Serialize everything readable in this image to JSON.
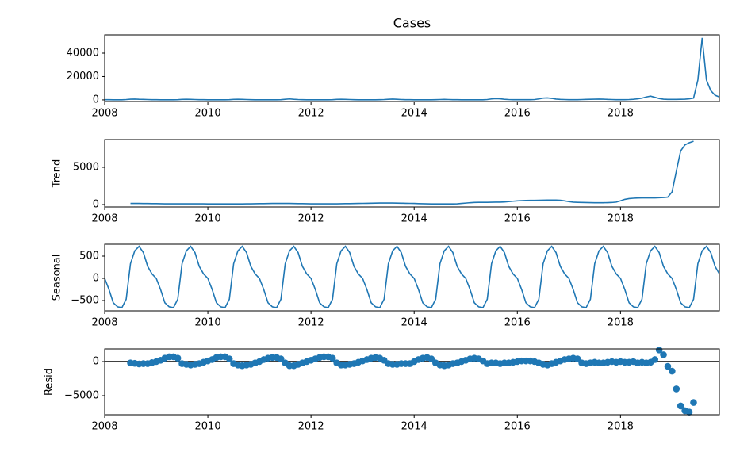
{
  "chart_data": [
    {
      "type": "line",
      "title": "Cases",
      "color": "#1f77b4",
      "xlim": [
        2008,
        2019.9167
      ],
      "xticks": [
        2008,
        2010,
        2012,
        2014,
        2016,
        2018
      ],
      "ylim": [
        -1400,
        55600
      ],
      "yticks": [
        0,
        20000,
        40000
      ],
      "x": [
        2008,
        2008.0833,
        2008.1667,
        2008.25,
        2008.3333,
        2008.4167,
        2008.5,
        2008.5833,
        2008.6667,
        2008.75,
        2008.8333,
        2008.9167,
        2009,
        2009.0833,
        2009.1667,
        2009.25,
        2009.3333,
        2009.4167,
        2009.5,
        2009.5833,
        2009.6667,
        2009.75,
        2009.8333,
        2009.9167,
        2010,
        2010.0833,
        2010.1667,
        2010.25,
        2010.3333,
        2010.4167,
        2010.5,
        2010.5833,
        2010.6667,
        2010.75,
        2010.8333,
        2010.9167,
        2011,
        2011.0833,
        2011.1667,
        2011.25,
        2011.3333,
        2011.4167,
        2011.5,
        2011.5833,
        2011.6667,
        2011.75,
        2011.8333,
        2011.9167,
        2012,
        2012.0833,
        2012.1667,
        2012.25,
        2012.3333,
        2012.4167,
        2012.5,
        2012.5833,
        2012.6667,
        2012.75,
        2012.8333,
        2012.9167,
        2013,
        2013.0833,
        2013.1667,
        2013.25,
        2013.3333,
        2013.4167,
        2013.5,
        2013.5833,
        2013.6667,
        2013.75,
        2013.8333,
        2013.9167,
        2014,
        2014.0833,
        2014.1667,
        2014.25,
        2014.3333,
        2014.4167,
        2014.5,
        2014.5833,
        2014.6667,
        2014.75,
        2014.8333,
        2014.9167,
        2015,
        2015.0833,
        2015.1667,
        2015.25,
        2015.3333,
        2015.4167,
        2015.5,
        2015.5833,
        2015.6667,
        2015.75,
        2015.8333,
        2015.9167,
        2016,
        2016.0833,
        2016.1667,
        2016.25,
        2016.3333,
        2016.4167,
        2016.5,
        2016.5833,
        2016.6667,
        2016.75,
        2016.8333,
        2016.9167,
        2017,
        2017.0833,
        2017.1667,
        2017.25,
        2017.3333,
        2017.4167,
        2017.5,
        2017.5833,
        2017.6667,
        2017.75,
        2017.8333,
        2017.9167,
        2018,
        2018.0833,
        2018.1667,
        2018.25,
        2018.3333,
        2018.4167,
        2018.5,
        2018.5833,
        2018.6667,
        2018.75,
        2018.8333,
        2018.9167,
        2019,
        2019.0833,
        2019.1667,
        2019.25,
        2019.3333,
        2019.4167,
        2019.5,
        2019.5833,
        2019.6667,
        2019.75,
        2019.8333,
        2019.9167
      ],
      "values": [
        200,
        150,
        100,
        100,
        100,
        300,
        600,
        700,
        500,
        400,
        300,
        200,
        150,
        100,
        100,
        100,
        100,
        200,
        400,
        500,
        400,
        300,
        200,
        150,
        100,
        100,
        100,
        100,
        100,
        200,
        400,
        500,
        400,
        300,
        200,
        100,
        100,
        100,
        100,
        100,
        100,
        200,
        500,
        800,
        500,
        300,
        200,
        100,
        100,
        100,
        100,
        100,
        100,
        200,
        400,
        500,
        400,
        300,
        200,
        100,
        100,
        100,
        100,
        100,
        200,
        300,
        500,
        700,
        500,
        300,
        200,
        150,
        100,
        100,
        100,
        100,
        100,
        200,
        300,
        400,
        300,
        200,
        150,
        100,
        100,
        100,
        100,
        100,
        100,
        300,
        800,
        1100,
        900,
        500,
        300,
        200,
        200,
        200,
        200,
        200,
        300,
        800,
        1500,
        1700,
        1300,
        700,
        400,
        300,
        200,
        200,
        200,
        300,
        400,
        500,
        600,
        700,
        600,
        400,
        300,
        200,
        200,
        200,
        300,
        500,
        900,
        1500,
        2500,
        3200,
        2200,
        1200,
        600,
        400,
        400,
        400,
        500,
        600,
        900,
        1500,
        17000,
        53000,
        17000,
        8000,
        4000,
        2500
      ]
    },
    {
      "type": "line",
      "ylabel": "Trend",
      "color": "#1f77b4",
      "xlim": [
        2008,
        2019.9167
      ],
      "xticks": [
        2008,
        2010,
        2012,
        2014,
        2016,
        2018
      ],
      "ylim": [
        -320,
        8720
      ],
      "yticks": [
        0,
        5000
      ],
      "x": [
        2008,
        2008.0833,
        2008.1667,
        2008.25,
        2008.3333,
        2008.4167,
        2008.5,
        2008.5833,
        2008.6667,
        2008.75,
        2008.8333,
        2008.9167,
        2009,
        2009.0833,
        2009.1667,
        2009.25,
        2009.3333,
        2009.4167,
        2009.5,
        2009.5833,
        2009.6667,
        2009.75,
        2009.8333,
        2009.9167,
        2010,
        2010.0833,
        2010.1667,
        2010.25,
        2010.3333,
        2010.4167,
        2010.5,
        2010.5833,
        2010.6667,
        2010.75,
        2010.8333,
        2010.9167,
        2011,
        2011.0833,
        2011.1667,
        2011.25,
        2011.3333,
        2011.4167,
        2011.5,
        2011.5833,
        2011.6667,
        2011.75,
        2011.8333,
        2011.9167,
        2012,
        2012.0833,
        2012.1667,
        2012.25,
        2012.3333,
        2012.4167,
        2012.5,
        2012.5833,
        2012.6667,
        2012.75,
        2012.8333,
        2012.9167,
        2013,
        2013.0833,
        2013.1667,
        2013.25,
        2013.3333,
        2013.4167,
        2013.5,
        2013.5833,
        2013.6667,
        2013.75,
        2013.8333,
        2013.9167,
        2014,
        2014.0833,
        2014.1667,
        2014.25,
        2014.3333,
        2014.4167,
        2014.5,
        2014.5833,
        2014.6667,
        2014.75,
        2014.8333,
        2014.9167,
        2015,
        2015.0833,
        2015.1667,
        2015.25,
        2015.3333,
        2015.4167,
        2015.5,
        2015.5833,
        2015.6667,
        2015.75,
        2015.8333,
        2015.9167,
        2016,
        2016.0833,
        2016.1667,
        2016.25,
        2016.3333,
        2016.4167,
        2016.5,
        2016.5833,
        2016.6667,
        2016.75,
        2016.8333,
        2016.9167,
        2017,
        2017.0833,
        2017.1667,
        2017.25,
        2017.3333,
        2017.4167,
        2017.5,
        2017.5833,
        2017.6667,
        2017.75,
        2017.8333,
        2017.9167,
        2018,
        2018.0833,
        2018.1667,
        2018.25,
        2018.3333,
        2018.4167,
        2018.5,
        2018.5833,
        2018.6667,
        2018.75,
        2018.8333,
        2018.9167,
        2019,
        2019.0833,
        2019.1667,
        2019.25,
        2019.3333,
        2019.4167,
        2019.5,
        2019.5833,
        2019.6667,
        2019.75,
        2019.8333,
        2019.9167
      ],
      "values": [
        null,
        null,
        null,
        null,
        null,
        null,
        150,
        150,
        150,
        140,
        140,
        130,
        120,
        110,
        100,
        100,
        100,
        100,
        100,
        100,
        100,
        100,
        100,
        100,
        90,
        90,
        90,
        90,
        90,
        90,
        90,
        90,
        90,
        100,
        100,
        110,
        120,
        130,
        140,
        150,
        150,
        150,
        150,
        150,
        140,
        130,
        120,
        110,
        100,
        100,
        100,
        100,
        100,
        100,
        100,
        110,
        120,
        130,
        140,
        150,
        160,
        170,
        180,
        190,
        200,
        210,
        210,
        200,
        190,
        180,
        170,
        160,
        150,
        130,
        110,
        100,
        90,
        90,
        90,
        90,
        90,
        90,
        100,
        150,
        200,
        250,
        280,
        300,
        300,
        300,
        310,
        320,
        330,
        350,
        400,
        450,
        500,
        530,
        550,
        560,
        570,
        580,
        590,
        600,
        600,
        600,
        580,
        500,
        400,
        330,
        300,
        280,
        270,
        260,
        250,
        250,
        250,
        260,
        280,
        330,
        500,
        700,
        800,
        850,
        880,
        900,
        900,
        900,
        900,
        920,
        950,
        1000,
        1700,
        4500,
        7200,
        8000,
        8300,
        8500,
        null,
        null,
        null,
        null,
        null,
        null
      ]
    },
    {
      "type": "line",
      "ylabel": "Seasonal",
      "color": "#1f77b4",
      "xlim": [
        2008,
        2019.9167
      ],
      "xticks": [
        2008,
        2010,
        2012,
        2014,
        2016,
        2018
      ],
      "ylim": [
        -732,
        768
      ],
      "yticks": [
        {
          "value": -500,
          "label": "−500"
        },
        0,
        500
      ],
      "x": [
        2008,
        2008.0833,
        2008.1667,
        2008.25,
        2008.3333,
        2008.4167,
        2008.5,
        2008.5833,
        2008.6667,
        2008.75,
        2008.8333,
        2008.9167,
        2009,
        2009.0833,
        2009.1667,
        2009.25,
        2009.3333,
        2009.4167,
        2009.5,
        2009.5833,
        2009.6667,
        2009.75,
        2009.8333,
        2009.9167,
        2010,
        2010.0833,
        2010.1667,
        2010.25,
        2010.3333,
        2010.4167,
        2010.5,
        2010.5833,
        2010.6667,
        2010.75,
        2010.8333,
        2010.9167,
        2011,
        2011.0833,
        2011.1667,
        2011.25,
        2011.3333,
        2011.4167,
        2011.5,
        2011.5833,
        2011.6667,
        2011.75,
        2011.8333,
        2011.9167,
        2012,
        2012.0833,
        2012.1667,
        2012.25,
        2012.3333,
        2012.4167,
        2012.5,
        2012.5833,
        2012.6667,
        2012.75,
        2012.8333,
        2012.9167,
        2013,
        2013.0833,
        2013.1667,
        2013.25,
        2013.3333,
        2013.4167,
        2013.5,
        2013.5833,
        2013.6667,
        2013.75,
        2013.8333,
        2013.9167,
        2014,
        2014.0833,
        2014.1667,
        2014.25,
        2014.3333,
        2014.4167,
        2014.5,
        2014.5833,
        2014.6667,
        2014.75,
        2014.8333,
        2014.9167,
        2015,
        2015.0833,
        2015.1667,
        2015.25,
        2015.3333,
        2015.4167,
        2015.5,
        2015.5833,
        2015.6667,
        2015.75,
        2015.8333,
        2015.9167,
        2016,
        2016.0833,
        2016.1667,
        2016.25,
        2016.3333,
        2016.4167,
        2016.5,
        2016.5833,
        2016.6667,
        2016.75,
        2016.8333,
        2016.9167,
        2017,
        2017.0833,
        2017.1667,
        2017.25,
        2017.3333,
        2017.4167,
        2017.5,
        2017.5833,
        2017.6667,
        2017.75,
        2017.8333,
        2017.9167,
        2018,
        2018.0833,
        2018.1667,
        2018.25,
        2018.3333,
        2018.4167,
        2018.5,
        2018.5833,
        2018.6667,
        2018.75,
        2018.8333,
        2018.9167,
        2019,
        2019.0833,
        2019.1667,
        2019.25,
        2019.3333,
        2019.4167,
        2019.5,
        2019.5833,
        2019.6667,
        2019.75,
        2019.8333,
        2019.9167
      ],
      "values": [
        0,
        -250,
        -550,
        -640,
        -660,
        -470,
        330,
        620,
        720,
        580,
        270,
        100,
        0,
        -250,
        -550,
        -640,
        -660,
        -470,
        330,
        620,
        720,
        580,
        270,
        100,
        0,
        -250,
        -550,
        -640,
        -660,
        -470,
        330,
        620,
        720,
        580,
        270,
        100,
        0,
        -250,
        -550,
        -640,
        -660,
        -470,
        330,
        620,
        720,
        580,
        270,
        100,
        0,
        -250,
        -550,
        -640,
        -660,
        -470,
        330,
        620,
        720,
        580,
        270,
        100,
        0,
        -250,
        -550,
        -640,
        -660,
        -470,
        330,
        620,
        720,
        580,
        270,
        100,
        0,
        -250,
        -550,
        -640,
        -660,
        -470,
        330,
        620,
        720,
        580,
        270,
        100,
        0,
        -250,
        -550,
        -640,
        -660,
        -470,
        330,
        620,
        720,
        580,
        270,
        100,
        0,
        -250,
        -550,
        -640,
        -660,
        -470,
        330,
        620,
        720,
        580,
        270,
        100,
        0,
        -250,
        -550,
        -640,
        -660,
        -470,
        330,
        620,
        720,
        580,
        270,
        100,
        0,
        -250,
        -550,
        -640,
        -660,
        -470,
        330,
        620,
        720,
        580,
        270,
        100,
        0,
        -250,
        -550,
        -640,
        -660,
        -470,
        330,
        620,
        720,
        580,
        270,
        100
      ]
    },
    {
      "type": "scatter",
      "ylabel": "Resid",
      "color": "#1f77b4",
      "hline": 0,
      "xlim": [
        2008,
        2019.9167
      ],
      "xticks": [
        2008,
        2010,
        2012,
        2014,
        2016,
        2018
      ],
      "ylim": [
        -7790,
        1860
      ],
      "yticks": [
        {
          "value": -5000,
          "label": "−5000"
        },
        0
      ],
      "x": [
        2008,
        2008.0833,
        2008.1667,
        2008.25,
        2008.3333,
        2008.4167,
        2008.5,
        2008.5833,
        2008.6667,
        2008.75,
        2008.8333,
        2008.9167,
        2009,
        2009.0833,
        2009.1667,
        2009.25,
        2009.3333,
        2009.4167,
        2009.5,
        2009.5833,
        2009.6667,
        2009.75,
        2009.8333,
        2009.9167,
        2010,
        2010.0833,
        2010.1667,
        2010.25,
        2010.3333,
        2010.4167,
        2010.5,
        2010.5833,
        2010.6667,
        2010.75,
        2010.8333,
        2010.9167,
        2011,
        2011.0833,
        2011.1667,
        2011.25,
        2011.3333,
        2011.4167,
        2011.5,
        2011.5833,
        2011.6667,
        2011.75,
        2011.8333,
        2011.9167,
        2012,
        2012.0833,
        2012.1667,
        2012.25,
        2012.3333,
        2012.4167,
        2012.5,
        2012.5833,
        2012.6667,
        2012.75,
        2012.8333,
        2012.9167,
        2013,
        2013.0833,
        2013.1667,
        2013.25,
        2013.3333,
        2013.4167,
        2013.5,
        2013.5833,
        2013.6667,
        2013.75,
        2013.8333,
        2013.9167,
        2014,
        2014.0833,
        2014.1667,
        2014.25,
        2014.3333,
        2014.4167,
        2014.5,
        2014.5833,
        2014.6667,
        2014.75,
        2014.8333,
        2014.9167,
        2015,
        2015.0833,
        2015.1667,
        2015.25,
        2015.3333,
        2015.4167,
        2015.5,
        2015.5833,
        2015.6667,
        2015.75,
        2015.8333,
        2015.9167,
        2016,
        2016.0833,
        2016.1667,
        2016.25,
        2016.3333,
        2016.4167,
        2016.5,
        2016.5833,
        2016.6667,
        2016.75,
        2016.8333,
        2016.9167,
        2017,
        2017.0833,
        2017.1667,
        2017.25,
        2017.3333,
        2017.4167,
        2017.5,
        2017.5833,
        2017.6667,
        2017.75,
        2017.8333,
        2017.9167,
        2018,
        2018.0833,
        2018.1667,
        2018.25,
        2018.3333,
        2018.4167,
        2018.5,
        2018.5833,
        2018.6667,
        2018.75,
        2018.8333,
        2018.9167,
        2019,
        2019.0833,
        2019.1667,
        2019.25,
        2019.3333,
        2019.4167,
        2019.5,
        2019.5833,
        2019.6667,
        2019.75,
        2019.8333,
        2019.9167
      ],
      "values": [
        null,
        null,
        null,
        null,
        null,
        null,
        -200,
        -250,
        -350,
        -300,
        -300,
        -150,
        0,
        200,
        500,
        700,
        700,
        500,
        -300,
        -400,
        -500,
        -400,
        -300,
        -100,
        100,
        300,
        600,
        700,
        700,
        400,
        -300,
        -500,
        -600,
        -500,
        -400,
        -200,
        0,
        300,
        500,
        600,
        600,
        400,
        -200,
        -600,
        -600,
        -400,
        -200,
        0,
        200,
        400,
        600,
        700,
        700,
        500,
        -200,
        -500,
        -500,
        -400,
        -300,
        -100,
        100,
        300,
        500,
        600,
        500,
        200,
        -300,
        -400,
        -400,
        -300,
        -300,
        -300,
        0,
        300,
        500,
        600,
        400,
        -200,
        -500,
        -600,
        -500,
        -300,
        -200,
        0,
        200,
        400,
        500,
        400,
        100,
        -300,
        -200,
        -200,
        -300,
        -200,
        -200,
        -100,
        0,
        100,
        100,
        100,
        0,
        -200,
        -400,
        -500,
        -300,
        -100,
        100,
        300,
        400,
        500,
        400,
        -200,
        -300,
        -200,
        -100,
        -200,
        -200,
        -100,
        0,
        -100,
        0,
        -100,
        -100,
        0,
        -200,
        -100,
        -200,
        -100,
        300,
        1700,
        1000,
        -700,
        -1400,
        -4000,
        -6500,
        -7200,
        -7400,
        -6000,
        null,
        null,
        null,
        null,
        null,
        null
      ]
    }
  ]
}
